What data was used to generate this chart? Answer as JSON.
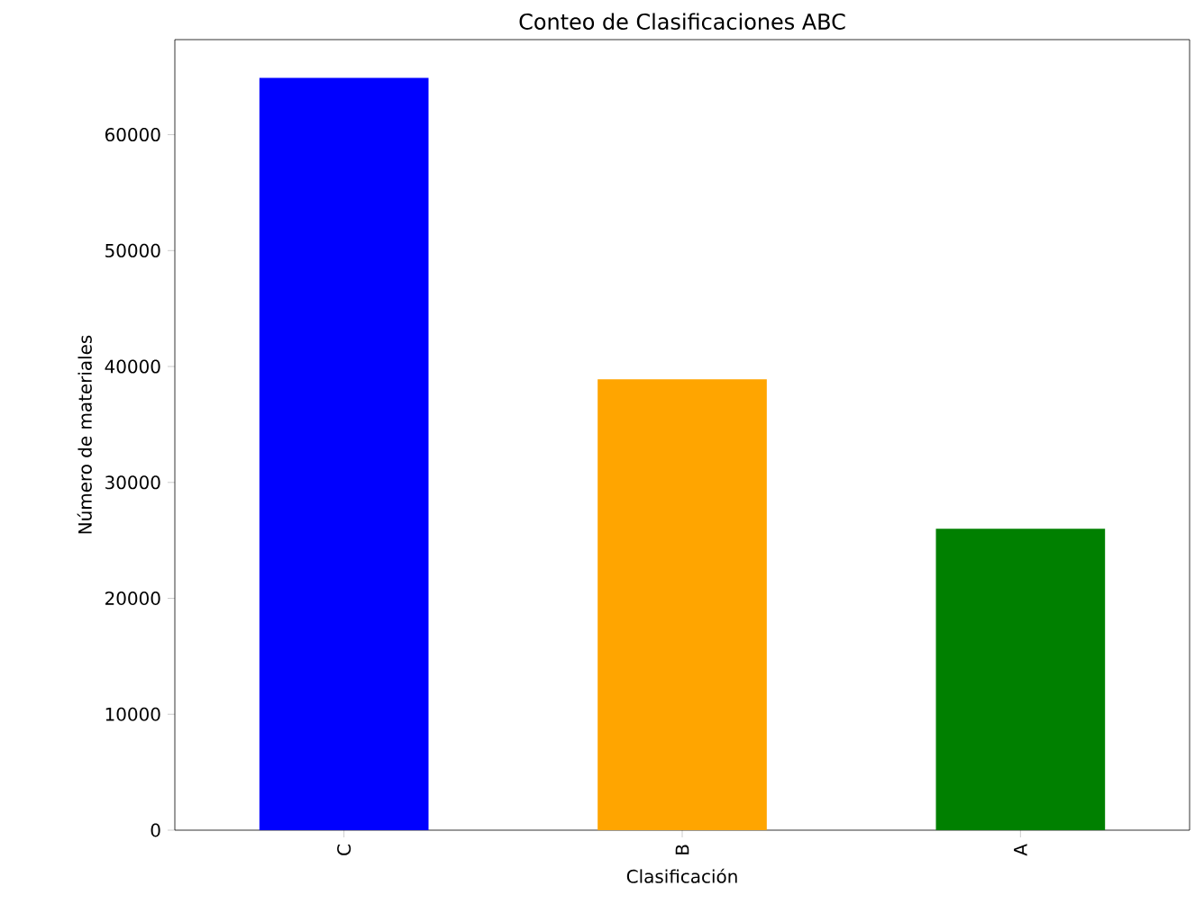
{
  "chart_data": {
    "type": "bar",
    "title": "Conteo de Clasificaciones ABC",
    "xlabel": "Clasificación",
    "ylabel": "Número de materiales",
    "categories": [
      "C",
      "B",
      "A"
    ],
    "values": [
      64900,
      38900,
      26000
    ],
    "colors": [
      "#0000ff",
      "#ffa500",
      "#008000"
    ],
    "ylim": [
      0,
      68200
    ],
    "yticks": [
      0,
      10000,
      20000,
      30000,
      40000,
      50000,
      60000
    ],
    "grid": false
  }
}
